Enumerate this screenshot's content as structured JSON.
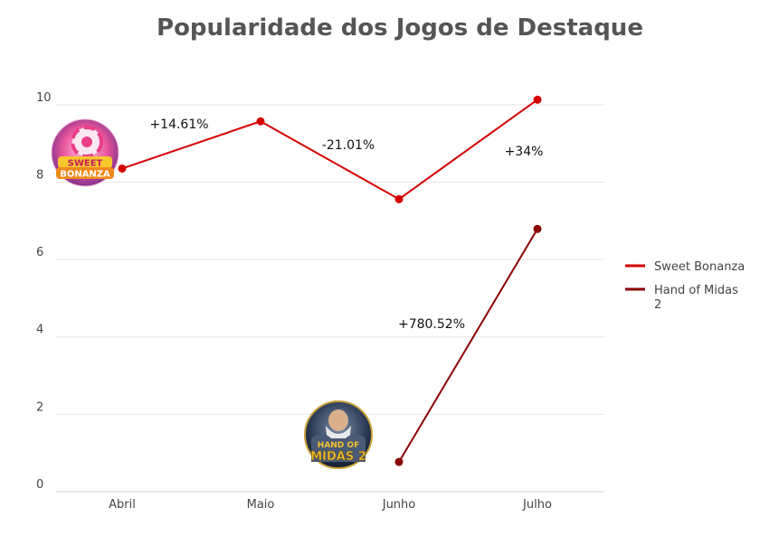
{
  "chart_data": {
    "type": "line",
    "title": "Popularidade dos Jogos de Destaque",
    "categories": [
      "Abril",
      "Maio",
      "Junho",
      "Julho"
    ],
    "ylim": [
      0,
      10.3
    ],
    "yticks": [
      0,
      2,
      4,
      6,
      8,
      10
    ],
    "grid": true,
    "legend_position": "right",
    "series": [
      {
        "name": "Sweet Bonanza",
        "color": "#d40000",
        "values": [
          8.35,
          9.57,
          7.56,
          10.13
        ],
        "icon": "sweet-bonanza-logo",
        "changes": [
          {
            "between": [
              0,
              1
            ],
            "label": "+14.61%"
          },
          {
            "between": [
              1,
              2
            ],
            "label": "-21.01%"
          },
          {
            "between": [
              2,
              3
            ],
            "label": "+34%"
          }
        ]
      },
      {
        "name": "Hand of Midas 2",
        "color": "#8b0000",
        "values": [
          null,
          null,
          0.77,
          6.79
        ],
        "icon": "hand-of-midas-2-logo",
        "changes": [
          {
            "between": [
              2,
              3
            ],
            "label": "+780.52%"
          }
        ]
      }
    ]
  }
}
